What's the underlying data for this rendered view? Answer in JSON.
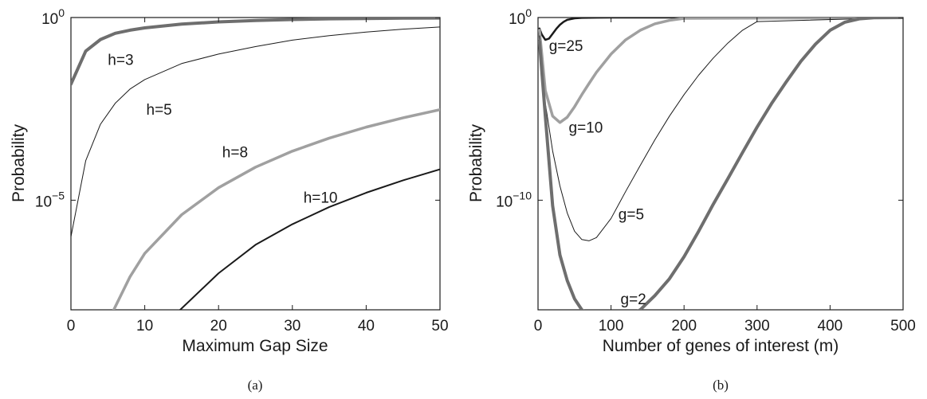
{
  "chart_data": [
    {
      "type": "line",
      "panel_caption": "(a)",
      "xlabel": "Maximum Gap Size",
      "ylabel": "Probability",
      "xlim": [
        0,
        50
      ],
      "ylim": [
        1e-08,
        1
      ],
      "yscale": "log",
      "grid": false,
      "x_ticks": [
        "0",
        "10",
        "20",
        "30",
        "40",
        "50"
      ],
      "y_ticks": [
        {
          "base": "10",
          "exp": "0"
        },
        {
          "base": "10",
          "exp": "−5"
        }
      ],
      "series": [
        {
          "name": "h=3",
          "color": "#6e6e6e",
          "width": 4,
          "x": [
            0,
            2,
            4,
            6,
            8,
            10,
            15,
            20,
            25,
            30,
            35,
            40,
            45,
            50
          ],
          "y": [
            0.015,
            0.12,
            0.25,
            0.37,
            0.45,
            0.52,
            0.66,
            0.76,
            0.83,
            0.88,
            0.92,
            0.94,
            0.96,
            0.97
          ]
        },
        {
          "name": "h=5",
          "color": "#1a1a1a",
          "width": 1,
          "x": [
            0,
            2,
            4,
            6,
            8,
            10,
            15,
            20,
            25,
            30,
            35,
            40,
            45,
            50
          ],
          "y": [
            1e-06,
            0.00012,
            0.0012,
            0.0045,
            0.011,
            0.02,
            0.055,
            0.1,
            0.16,
            0.24,
            0.32,
            0.4,
            0.48,
            0.55
          ]
        },
        {
          "name": "h=8",
          "color": "#a0a0a0",
          "width": 3.5,
          "x": [
            5.8,
            8,
            10,
            15,
            20,
            25,
            30,
            35,
            40,
            45,
            50
          ],
          "y": [
            1e-08,
            8e-08,
            3.5e-07,
            4e-06,
            2.2e-05,
            8e-05,
            0.00022,
            0.0005,
            0.001,
            0.0018,
            0.003
          ]
        },
        {
          "name": "h=10",
          "color": "#1a1a1a",
          "width": 2,
          "x": [
            14.8,
            20,
            25,
            30,
            35,
            40,
            45,
            50
          ],
          "y": [
            1e-08,
            1e-07,
            6e-07,
            2.2e-06,
            6.5e-06,
            1.6e-05,
            3.5e-05,
            7e-05
          ]
        }
      ],
      "annotations": [
        {
          "text": "h=3",
          "x": 5,
          "y": 0.05
        },
        {
          "text": "h=5",
          "x": 10.2,
          "y": 0.0022
        },
        {
          "text": "h=8",
          "x": 20.5,
          "y": 0.00015
        },
        {
          "text": "h=10",
          "x": 31.5,
          "y": 8.5e-06
        }
      ]
    },
    {
      "type": "line",
      "panel_caption": "(b)",
      "xlabel": "Number of genes of interest (m)",
      "ylabel": "Probability",
      "xlim": [
        0,
        500
      ],
      "ylim": [
        1e-16,
        1
      ],
      "yscale": "log",
      "grid": false,
      "x_ticks": [
        "0",
        "100",
        "200",
        "300",
        "400",
        "500"
      ],
      "y_ticks": [
        {
          "base": "10",
          "exp": "0"
        },
        {
          "base": "10",
          "exp": "−10"
        }
      ],
      "series": [
        {
          "name": "g=25",
          "color": "#1a1a1a",
          "width": 2.5,
          "x": [
            2,
            5,
            10,
            15,
            20,
            25,
            30,
            35,
            40,
            50,
            60,
            80,
            100,
            500
          ],
          "y": [
            0.25,
            0.12,
            0.06,
            0.07,
            0.13,
            0.24,
            0.4,
            0.58,
            0.75,
            0.9,
            0.96,
            0.99,
            1,
            1
          ]
        },
        {
          "name": "g=10",
          "color": "#a0a0a0",
          "width": 3.5,
          "x": [
            2,
            10,
            20,
            30,
            40,
            50,
            60,
            70,
            80,
            100,
            120,
            140,
            160,
            180,
            200,
            500
          ],
          "y": [
            0.2,
            0.0001,
            4e-06,
            1.8e-06,
            3.5e-06,
            1.3e-05,
            6e-05,
            0.00025,
            0.001,
            0.01,
            0.06,
            0.2,
            0.45,
            0.7,
            0.9,
            1
          ]
        },
        {
          "name": "g=5",
          "color": "#1a1a1a",
          "width": 1,
          "x": [
            2,
            10,
            20,
            30,
            40,
            50,
            60,
            70,
            80,
            100,
            120,
            140,
            160,
            180,
            200,
            220,
            240,
            260,
            280,
            300,
            500
          ],
          "y": [
            0.1,
            2e-05,
            5e-08,
            6e-10,
            2e-11,
            2e-12,
            7e-13,
            6e-13,
            9e-13,
            1e-11,
            3e-10,
            8e-09,
            2e-07,
            4e-06,
            6e-05,
            0.0007,
            0.006,
            0.04,
            0.2,
            0.6,
            1
          ]
        },
        {
          "name": "g=2",
          "color": "#6e6e6e",
          "width": 4,
          "x": [
            2,
            10,
            20,
            30,
            40,
            50,
            60,
            70,
            80,
            90,
            100,
            110,
            120,
            140,
            160,
            180,
            200,
            220,
            240,
            260,
            280,
            300,
            320,
            340,
            360,
            380,
            400,
            420,
            440,
            460,
            500
          ],
          "y": [
            0.05,
            4e-06,
            5e-11,
            1e-13,
            4e-15,
            4e-16,
            1e-16,
            5e-17,
            3e-17,
            2.2e-17,
            2e-17,
            2.4e-17,
            3.5e-17,
            1e-16,
            6e-16,
            5e-15,
            8e-14,
            2e-12,
            6e-11,
            1.5e-09,
            4e-08,
            1e-06,
            2e-05,
            0.0003,
            0.004,
            0.035,
            0.2,
            0.55,
            0.85,
            0.97,
            1
          ]
        }
      ],
      "annotations": [
        {
          "text": "g=25",
          "x": 15,
          "y": 0.015
        },
        {
          "text": "g=10",
          "x": 42,
          "y": 5e-07
        },
        {
          "text": "g=5",
          "x": 110,
          "y": 9e-12
        },
        {
          "text": "g=2",
          "x": 113,
          "y": 2e-16
        }
      ]
    }
  ]
}
